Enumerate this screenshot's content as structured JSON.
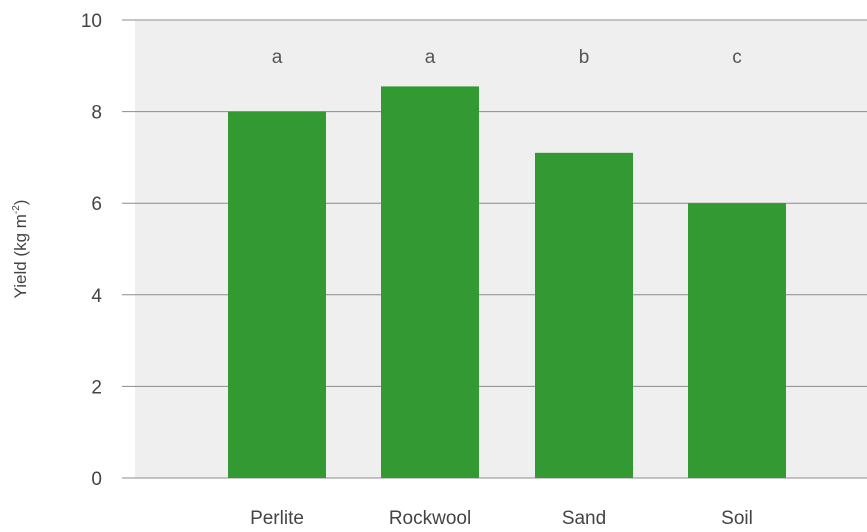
{
  "chart_data": {
    "type": "bar",
    "categories": [
      "Perlite",
      "Rockwool",
      "Sand",
      "Soil"
    ],
    "values": [
      8.0,
      8.55,
      7.1,
      6.0
    ],
    "significance_letters": [
      "a",
      "a",
      "b",
      "c"
    ],
    "title": "",
    "xlabel": "",
    "ylabel": "Yield (kg m",
    "ylabel_superscript": "-2",
    "ylabel_suffix": ")",
    "ylim": [
      0,
      10
    ],
    "yticks": [
      0,
      2,
      4,
      6,
      8,
      10
    ],
    "grid": true,
    "legend": "none",
    "colors": {
      "bar": "#339933",
      "plot_background": "#efefef",
      "gridline": "#8c8c8c"
    }
  }
}
